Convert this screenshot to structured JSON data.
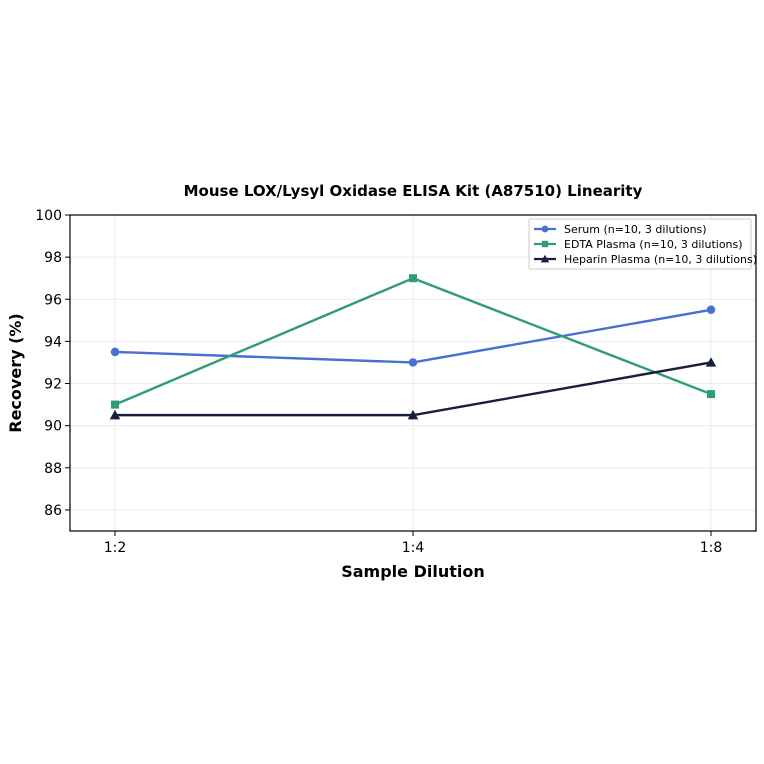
{
  "chart_data": {
    "type": "line",
    "title": "Mouse LOX/Lysyl Oxidase ELISA Kit (A87510) Linearity",
    "xlabel": "Sample Dilution",
    "ylabel": "Recovery (%)",
    "categories": [
      "1:2",
      "1:4",
      "1:8"
    ],
    "ylim": [
      85,
      100
    ],
    "yticks": [
      86,
      88,
      90,
      92,
      94,
      96,
      98,
      100
    ],
    "grid": true,
    "legend_position": "top-right",
    "series": [
      {
        "name": "Serum (n=10, 3 dilutions)",
        "values": [
          93.5,
          93.0,
          95.5
        ],
        "color": "#4a6fd4",
        "marker": "circle"
      },
      {
        "name": "EDTA Plasma (n=10, 3 dilutions)",
        "values": [
          91.0,
          97.0,
          91.5
        ],
        "color": "#2e9c78",
        "marker": "square"
      },
      {
        "name": "Heparin Plasma (n=10, 3 dilutions)",
        "values": [
          90.5,
          90.5,
          93.0
        ],
        "color": "#16203d",
        "marker": "triangle"
      }
    ]
  }
}
